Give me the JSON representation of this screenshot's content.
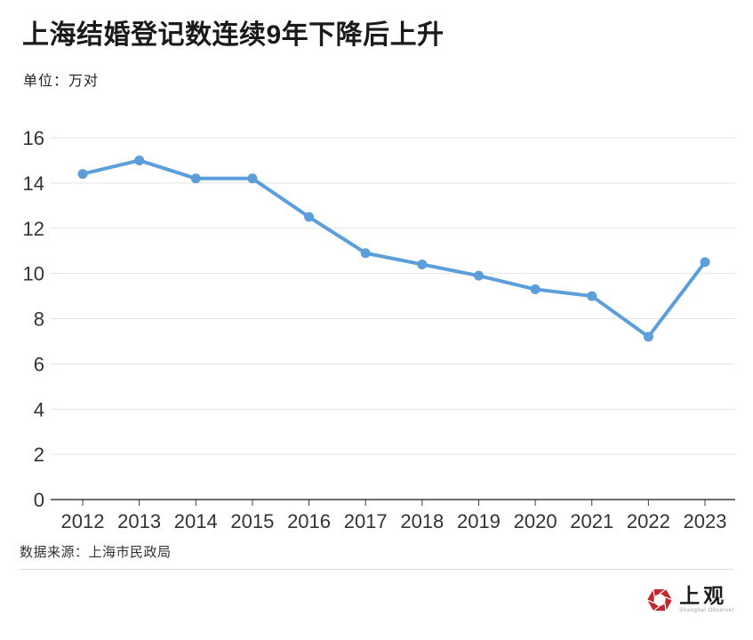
{
  "header": {
    "title": "上海结婚登记数连续9年下降后上升",
    "unit_label": "单位：万对"
  },
  "chart_data": {
    "type": "line",
    "title": "上海结婚登记数连续9年下降后上升",
    "unit": "万对",
    "categories": [
      "2012",
      "2013",
      "2014",
      "2015",
      "2016",
      "2017",
      "2018",
      "2019",
      "2020",
      "2021",
      "2022",
      "2023"
    ],
    "values": [
      14.4,
      15.0,
      14.2,
      14.2,
      12.5,
      10.9,
      10.4,
      9.9,
      9.3,
      9.0,
      7.2,
      10.5
    ],
    "xlabel": "",
    "ylabel": "",
    "ylim": [
      0,
      16
    ],
    "ytick_step": 2,
    "yticks": [
      0,
      2,
      4,
      6,
      8,
      10,
      12,
      14,
      16
    ],
    "grid": true,
    "legend": "none",
    "line_color": "#5B9ED9",
    "marker_color": "#5B9ED9",
    "gridline_color": "#e3e3e3",
    "axis_color": "#3c3c3c",
    "tick_label_color": "#333333"
  },
  "footer": {
    "source": "数据来源：上海市民政局",
    "logo_text": "上观",
    "logo_subtext": "Shanghai Observer",
    "logo_color": "#C0272F"
  }
}
